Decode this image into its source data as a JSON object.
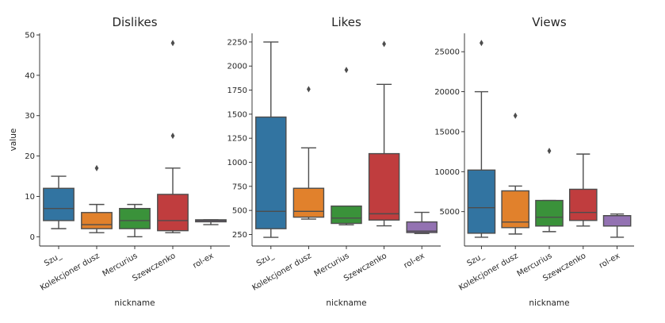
{
  "chart_data": [
    {
      "type": "box",
      "title": "Dislikes",
      "xlabel": "nickname",
      "ylabel": "value",
      "ylim": [
        -2.3,
        50.4
      ],
      "yticks": [
        0,
        10,
        20,
        30,
        40,
        50
      ],
      "categories": [
        "Szu_",
        "Kolekcjoner dusz",
        "Mercurius",
        "Szewczenko",
        "rol-ex"
      ],
      "boxes": [
        {
          "category": "Szu_",
          "whisker_low": 2,
          "q1": 4,
          "median": 7,
          "q3": 12,
          "whisker_high": 15,
          "outliers": []
        },
        {
          "category": "Kolekcjoner dusz",
          "whisker_low": 1,
          "q1": 2,
          "median": 3,
          "q3": 6,
          "whisker_high": 8,
          "outliers": [
            17
          ]
        },
        {
          "category": "Mercurius",
          "whisker_low": 0,
          "q1": 2,
          "median": 4,
          "q3": 7,
          "whisker_high": 8,
          "outliers": []
        },
        {
          "category": "Szewczenko",
          "whisker_low": 1,
          "q1": 1.5,
          "median": 4,
          "q3": 10.5,
          "whisker_high": 17,
          "outliers": [
            25,
            48
          ]
        },
        {
          "category": "rol-ex",
          "whisker_low": 3,
          "q1": 3.7,
          "median": 4,
          "q3": 4.2,
          "whisker_high": 4.2,
          "outliers": []
        }
      ]
    },
    {
      "type": "box",
      "title": "Likes",
      "xlabel": "nickname",
      "ylabel": "",
      "ylim": [
        130,
        2340
      ],
      "yticks": [
        250,
        500,
        750,
        1000,
        1250,
        1500,
        1750,
        2000,
        2250
      ],
      "categories": [
        "Szu_",
        "Kolekcjoner dusz",
        "Mercurius",
        "Szewczenko",
        "rol-ex"
      ],
      "boxes": [
        {
          "category": "Szu_",
          "whisker_low": 220,
          "q1": 310,
          "median": 490,
          "q3": 1470,
          "whisker_high": 2250,
          "outliers": []
        },
        {
          "category": "Kolekcjoner dusz",
          "whisker_low": 410,
          "q1": 430,
          "median": 490,
          "q3": 730,
          "whisker_high": 1150,
          "outliers": [
            1760
          ]
        },
        {
          "category": "Mercurius",
          "whisker_low": 350,
          "q1": 365,
          "median": 420,
          "q3": 545,
          "whisker_high": 545,
          "outliers": [
            1960
          ]
        },
        {
          "category": "Szewczenko",
          "whisker_low": 340,
          "q1": 400,
          "median": 465,
          "q3": 1090,
          "whisker_high": 1810,
          "outliers": [
            2230
          ]
        },
        {
          "category": "rol-ex",
          "whisker_low": 260,
          "q1": 270,
          "median": 285,
          "q3": 380,
          "whisker_high": 480,
          "outliers": []
        }
      ]
    },
    {
      "type": "box",
      "title": "Views",
      "xlabel": "nickname",
      "ylabel": "",
      "ylim": [
        700,
        27300
      ],
      "yticks": [
        5000,
        10000,
        15000,
        20000,
        25000
      ],
      "categories": [
        "Szu_",
        "Kolekcjoner dusz",
        "Mercurius",
        "Szewczenko",
        "rol-ex"
      ],
      "boxes": [
        {
          "category": "Szu_",
          "whisker_low": 1800,
          "q1": 2300,
          "median": 5500,
          "q3": 10200,
          "whisker_high": 20000,
          "outliers": [
            26100
          ]
        },
        {
          "category": "Kolekcjoner dusz",
          "whisker_low": 2200,
          "q1": 3000,
          "median": 3700,
          "q3": 7600,
          "whisker_high": 8200,
          "outliers": [
            17000
          ]
        },
        {
          "category": "Mercurius",
          "whisker_low": 2500,
          "q1": 3200,
          "median": 4300,
          "q3": 6400,
          "whisker_high": 6400,
          "outliers": [
            12600
          ]
        },
        {
          "category": "Szewczenko",
          "whisker_low": 3200,
          "q1": 3900,
          "median": 4900,
          "q3": 7800,
          "whisker_high": 12200,
          "outliers": []
        },
        {
          "category": "rol-ex",
          "whisker_low": 1800,
          "q1": 3200,
          "median": 4500,
          "q3": 4500,
          "whisker_high": 4700,
          "outliers": []
        }
      ]
    }
  ],
  "colors": [
    "#3274a1",
    "#e1812c",
    "#3a923a",
    "#c03d3e",
    "#9372b2"
  ],
  "line_color": "#4d4d4d"
}
